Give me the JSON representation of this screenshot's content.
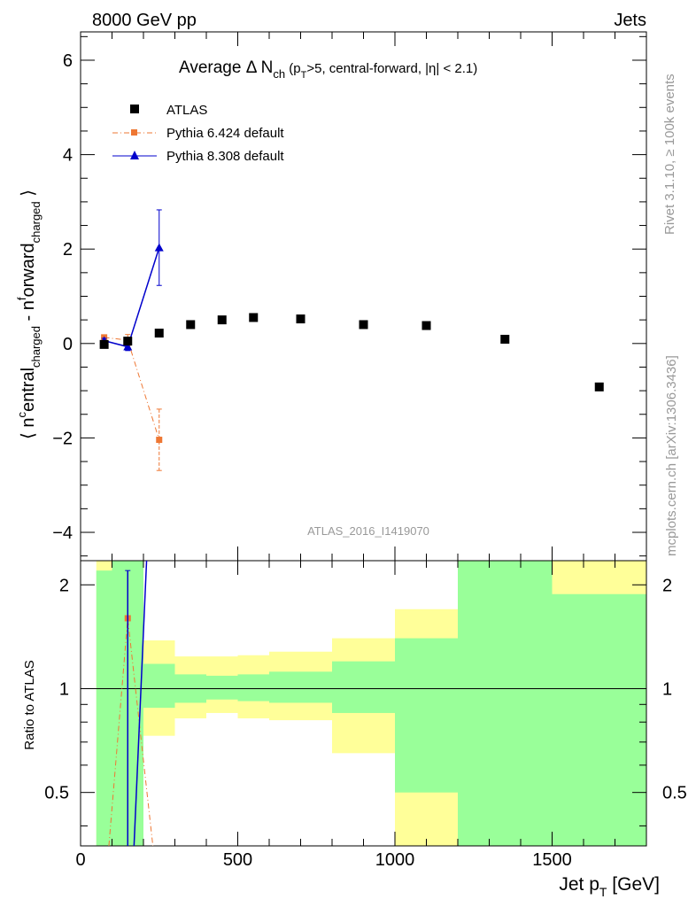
{
  "header": {
    "left": "8000 GeV pp",
    "right": "Jets"
  },
  "side_labels": {
    "rivet": "Rivet 3.1.10, ≥ 100k events",
    "mcplots": "mcplots.cern.ch [arXiv:1306.3436]"
  },
  "watermark": "ATLAS_2016_I1419070",
  "colors": {
    "data": "#000000",
    "pythia6": "#ee7733",
    "pythia8": "#0000cc",
    "band_green": "#99ff99",
    "band_yellow": "#ffff99"
  },
  "chart_data": [
    {
      "type": "scatter",
      "panel": "main",
      "title_main": "Average Δ N",
      "title_sub": "ch",
      "title_rest": " (p",
      "title_sub2": "T",
      "title_tail": ">5, central-forward, |η| < 2.1)",
      "ylabel": "⟨ n^central_charged - n^forward_charged ⟩",
      "xlim": [
        0,
        1800
      ],
      "ylim": [
        -4.6,
        6.6
      ],
      "yticks": [
        -4,
        -2,
        0,
        2,
        4,
        6
      ],
      "ytick_labels": [
        "−4",
        "−2",
        "0",
        "2",
        "4",
        "6"
      ],
      "legend": [
        "ATLAS",
        "Pythia 6.424 default",
        "Pythia 8.308 default"
      ],
      "legend_position": "top-left",
      "series": [
        {
          "name": "ATLAS",
          "marker": "square",
          "x": [
            75,
            150,
            250,
            350,
            450,
            550,
            700,
            900,
            1100,
            1350,
            1650
          ],
          "y": [
            -0.02,
            0.05,
            0.22,
            0.4,
            0.5,
            0.55,
            0.52,
            0.4,
            0.38,
            0.09,
            -0.92
          ]
        },
        {
          "name": "Pythia 6.424 default",
          "marker": "square-small",
          "line": "dashdot",
          "x": [
            75,
            150,
            250
          ],
          "y": [
            0.13,
            0.07,
            -2.04
          ],
          "yerr": [
            0.05,
            0.12,
            0.65
          ]
        },
        {
          "name": "Pythia 8.308 default",
          "marker": "triangle",
          "line": "solid",
          "x": [
            75,
            150,
            250
          ],
          "y": [
            0.06,
            -0.07,
            2.03
          ],
          "yerr": [
            0.05,
            0.08,
            0.8
          ]
        }
      ]
    },
    {
      "type": "scatter",
      "panel": "ratio",
      "ylabel": "Ratio to ATLAS",
      "xlabel": "Jet p_T [GeV]",
      "xlabel_main": "Jet p",
      "xlabel_sub": "T",
      "xlabel_tail": " [GeV]",
      "xlim": [
        0,
        1800
      ],
      "ylim": [
        0.35,
        2.35
      ],
      "yticks": [
        0.5,
        1,
        2
      ],
      "ytick_labels": [
        "0.5",
        "1",
        "2"
      ],
      "xticks": [
        0,
        500,
        1000,
        1500
      ],
      "xtick_labels": [
        "0",
        "500",
        "1000",
        "1500"
      ],
      "bands": [
        {
          "x0": 50,
          "x1": 100,
          "g_lo": 0.35,
          "g_hi": 2.2,
          "y_lo": 0.35,
          "y_hi": 2.35
        },
        {
          "x0": 100,
          "x1": 200,
          "g_lo": 0.35,
          "g_hi": 2.35,
          "y_lo": 0.35,
          "y_hi": 2.35
        },
        {
          "x0": 200,
          "x1": 300,
          "g_lo": 0.88,
          "g_hi": 1.18,
          "y_lo": 0.73,
          "y_hi": 1.38
        },
        {
          "x0": 300,
          "x1": 400,
          "g_lo": 0.91,
          "g_hi": 1.1,
          "y_lo": 0.82,
          "y_hi": 1.24
        },
        {
          "x0": 400,
          "x1": 500,
          "g_lo": 0.93,
          "g_hi": 1.09,
          "y_lo": 0.85,
          "y_hi": 1.24
        },
        {
          "x0": 500,
          "x1": 600,
          "g_lo": 0.92,
          "g_hi": 1.1,
          "y_lo": 0.82,
          "y_hi": 1.25
        },
        {
          "x0": 600,
          "x1": 800,
          "g_lo": 0.91,
          "g_hi": 1.12,
          "y_lo": 0.81,
          "y_hi": 1.28
        },
        {
          "x0": 800,
          "x1": 1000,
          "g_lo": 0.85,
          "g_hi": 1.2,
          "y_lo": 0.65,
          "y_hi": 1.4
        },
        {
          "x0": 1000,
          "x1": 1200,
          "g_lo": 0.5,
          "g_hi": 1.4,
          "y_lo": 0.35,
          "y_hi": 1.7
        },
        {
          "x0": 1200,
          "x1": 1500,
          "g_lo": 0.35,
          "g_hi": 2.35,
          "y_lo": 0.35,
          "y_hi": 2.35
        },
        {
          "x0": 1500,
          "x1": 1800,
          "g_lo": 0.35,
          "g_hi": 1.88,
          "y_lo": 0.35,
          "y_hi": 2.35
        }
      ],
      "series": [
        {
          "name": "Pythia 6.424 default",
          "x": [
            90,
            150,
            230
          ],
          "y": [
            0.35,
            1.6,
            0.35
          ],
          "point": {
            "x": 150,
            "y": 1.6
          }
        },
        {
          "name": "Pythia 8.308 default",
          "x": [
            150,
            150,
            170,
            210
          ],
          "y": [
            2.2,
            0.35,
            0.35,
            2.35
          ],
          "errbar": {
            "x": 150,
            "lo": 0.35,
            "hi": 2.2
          }
        }
      ]
    }
  ]
}
